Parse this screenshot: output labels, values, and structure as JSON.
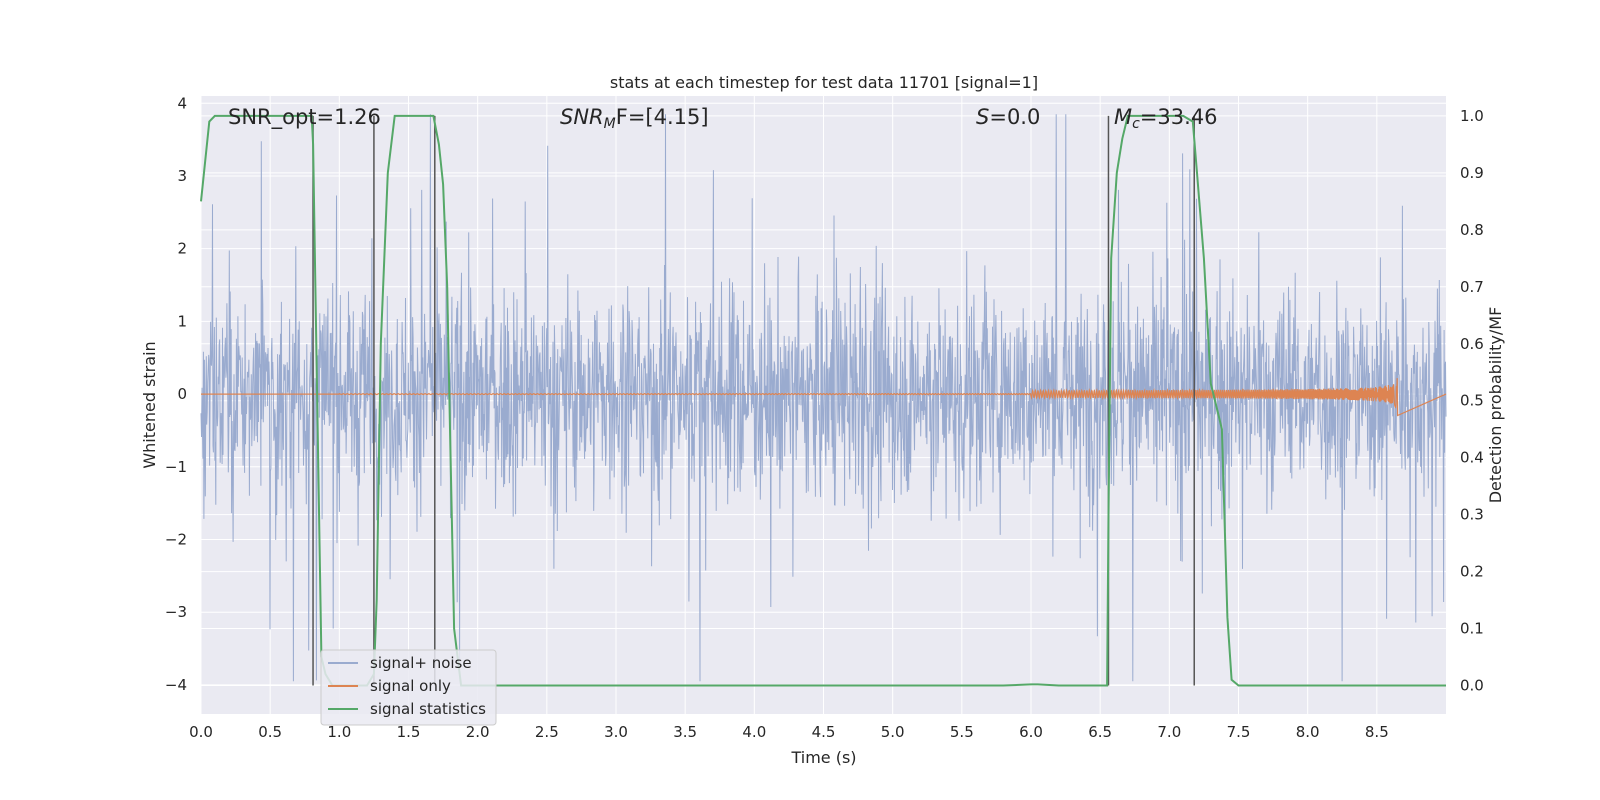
{
  "chart_data": {
    "type": "line",
    "title": "stats at each timestep for test data 11701 [signal=1]",
    "xlabel": "Time (s)",
    "ylabel_left": "Whitened strain",
    "ylabel_right": "Detection probability/MF",
    "xlim": [
      0.0,
      9.0
    ],
    "ylim_left": [
      -4.4,
      4.1
    ],
    "ylim_right": [
      -0.05,
      1.035
    ],
    "x_ticks": [
      "0.0",
      "0.5",
      "1.0",
      "1.5",
      "2.0",
      "2.5",
      "3.0",
      "3.5",
      "4.0",
      "4.5",
      "5.0",
      "5.5",
      "6.0",
      "6.5",
      "7.0",
      "7.5",
      "8.0",
      "8.5"
    ],
    "y_ticks_left": [
      "−4",
      "−3",
      "−2",
      "−1",
      "0",
      "1",
      "2",
      "3",
      "4"
    ],
    "y_ticks_right": [
      "0.0",
      "0.1",
      "0.2",
      "0.3",
      "0.4",
      "0.5",
      "0.6",
      "0.7",
      "0.8",
      "0.9",
      "1.0"
    ],
    "grid": true,
    "legend_position": "lower-left",
    "colors": {
      "background": "#eaeaf2",
      "noise": "#9aabcf",
      "signal": "#dd8452",
      "stats": "#55a868",
      "vline": "#555555"
    },
    "annotations": {
      "snr_opt": "SNR_opt=1.26",
      "snr_mf_a": "SNR",
      "snr_mf_sub": "M",
      "snr_mf_b": "F=[4.15]",
      "s_a": "S",
      "s_b": "=0.0",
      "mc_a": "M",
      "mc_sub": "c",
      "mc_b": "=33.46"
    },
    "series": [
      {
        "name": "signal+ noise",
        "axis": "left",
        "description_values": "noise envelope approx ±1.4 core, peaks to ±3.7"
      },
      {
        "name": "signal only",
        "axis": "left",
        "chirp_end_time": 8.65,
        "peak_amplitude": 0.3
      },
      {
        "name": "signal statistics",
        "axis": "right",
        "x": [
          0.0,
          0.06,
          0.1,
          0.2,
          0.5,
          0.8,
          0.81,
          0.84,
          0.87,
          0.9,
          0.95,
          1.0,
          1.1,
          1.2,
          1.25,
          1.27,
          1.3,
          1.35,
          1.4,
          1.5,
          1.6,
          1.68,
          1.72,
          1.75,
          1.78,
          1.8,
          1.83,
          1.88,
          2.0,
          3.0,
          4.0,
          5.0,
          5.8,
          6.0,
          6.05,
          6.2,
          6.4,
          6.55,
          6.56,
          6.58,
          6.62,
          6.66,
          6.7,
          6.8,
          7.0,
          7.1,
          7.17,
          7.2,
          7.25,
          7.3,
          7.35,
          7.38,
          7.42,
          7.45,
          7.5,
          8.0,
          8.5,
          9.0
        ],
        "values": [
          0.85,
          0.99,
          1.0,
          1.0,
          1.0,
          1.0,
          0.95,
          0.5,
          0.05,
          0.02,
          0.0,
          0.0,
          0.0,
          0.0,
          0.02,
          0.15,
          0.6,
          0.9,
          1.0,
          1.0,
          1.0,
          1.0,
          0.95,
          0.88,
          0.7,
          0.45,
          0.1,
          0.0,
          0.0,
          0.0,
          0.0,
          0.0,
          0.0,
          0.002,
          0.002,
          0.0,
          0.0,
          0.0,
          0.3,
          0.75,
          0.9,
          0.96,
          1.0,
          1.0,
          1.0,
          1.0,
          0.99,
          0.9,
          0.75,
          0.53,
          0.48,
          0.45,
          0.12,
          0.01,
          0.0,
          0.0,
          0.0,
          0.0
        ]
      }
    ],
    "vertical_lines_x": [
      0.81,
      1.25,
      1.69,
      6.56,
      7.18
    ]
  },
  "legend": {
    "noise_label": "signal+ noise",
    "signal_label": "signal only",
    "stats_label": "signal statistics"
  }
}
